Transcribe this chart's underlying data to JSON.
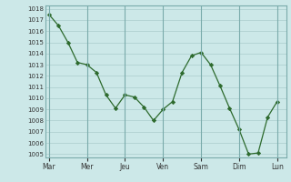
{
  "x_values": [
    0,
    0.5,
    1,
    1.5,
    2,
    2.5,
    3,
    3.5,
    4,
    4.5,
    5,
    5.5,
    6,
    6.5,
    7,
    7.5,
    8,
    8.5,
    9,
    9.5,
    10,
    10.5,
    11,
    11.5,
    12
  ],
  "y_values": [
    1017.5,
    1016.5,
    1015.0,
    1013.2,
    1013.0,
    1012.3,
    1010.3,
    1009.1,
    1010.3,
    1010.1,
    1009.2,
    1008.0,
    1009.0,
    1009.7,
    1012.3,
    1013.8,
    1014.1,
    1013.0,
    1011.1,
    1009.1,
    1007.2,
    1005.0,
    1005.1,
    1008.3,
    1009.7
  ],
  "day_labels": [
    "Mar",
    "Mer",
    "Jeu",
    "Ven",
    "Sam",
    "Dim",
    "Lun"
  ],
  "day_positions": [
    0,
    2,
    4,
    6,
    8,
    10,
    12
  ],
  "ylim_min": 1005,
  "ylim_max": 1018,
  "line_color": "#2d6a2d",
  "marker_color": "#2d6a2d",
  "bg_color": "#cce8e8",
  "grid_color": "#aacccc",
  "axis_label_color": "#333333",
  "border_color": "#7aabab"
}
